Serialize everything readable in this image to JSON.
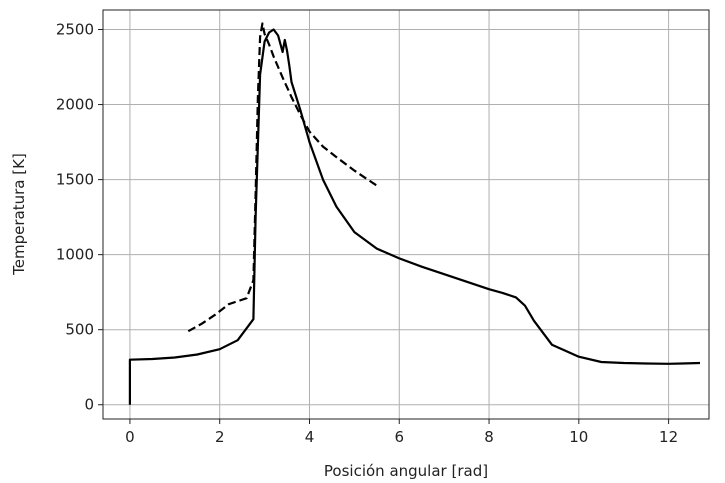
{
  "chart_data": {
    "type": "line",
    "xlabel": "Posición angular [rad]",
    "ylabel": "Temperatura [K]",
    "xlim": [
      -0.6,
      12.9
    ],
    "ylim": [
      -95,
      2630
    ],
    "xticks": [
      0,
      2,
      4,
      6,
      8,
      10,
      12
    ],
    "yticks": [
      0,
      500,
      1000,
      1500,
      2000,
      2500
    ],
    "grid": true,
    "colors": {
      "series": "#000000",
      "grid": "#b0b0b0"
    },
    "series": [
      {
        "style": "solid",
        "x": [
          0,
          0,
          0.5,
          1.0,
          1.5,
          2.0,
          2.4,
          2.75,
          2.8,
          2.9,
          3.0,
          3.1,
          3.2,
          3.3,
          3.4,
          3.45,
          3.5,
          3.55,
          3.6,
          3.8,
          4.0,
          4.3,
          4.6,
          5.0,
          5.5,
          6.0,
          6.5,
          7.0,
          7.5,
          8.0,
          8.3,
          8.6,
          8.8,
          9.0,
          9.2,
          9.4,
          9.7,
          10.0,
          10.5,
          11.0,
          11.5,
          12.0,
          12.3,
          12.7
        ],
        "y": [
          0,
          300,
          305,
          315,
          335,
          370,
          430,
          570,
          1250,
          2200,
          2420,
          2480,
          2500,
          2460,
          2350,
          2430,
          2360,
          2260,
          2150,
          1960,
          1750,
          1500,
          1320,
          1150,
          1040,
          975,
          920,
          870,
          820,
          770,
          745,
          715,
          660,
          560,
          480,
          400,
          360,
          320,
          285,
          278,
          275,
          273,
          275,
          278
        ]
      },
      {
        "style": "dashed",
        "x": [
          1.3,
          1.6,
          1.9,
          2.2,
          2.4,
          2.6,
          2.75,
          2.8,
          2.85,
          2.9,
          2.95,
          3.0,
          3.1,
          3.2,
          3.3,
          3.4,
          3.6,
          3.8,
          4.0,
          4.3,
          4.6,
          5.0,
          5.3,
          5.55
        ],
        "y": [
          490,
          540,
          600,
          670,
          690,
          710,
          830,
          1400,
          2050,
          2450,
          2540,
          2470,
          2400,
          2320,
          2250,
          2180,
          2050,
          1930,
          1820,
          1720,
          1650,
          1560,
          1500,
          1450
        ]
      }
    ]
  }
}
